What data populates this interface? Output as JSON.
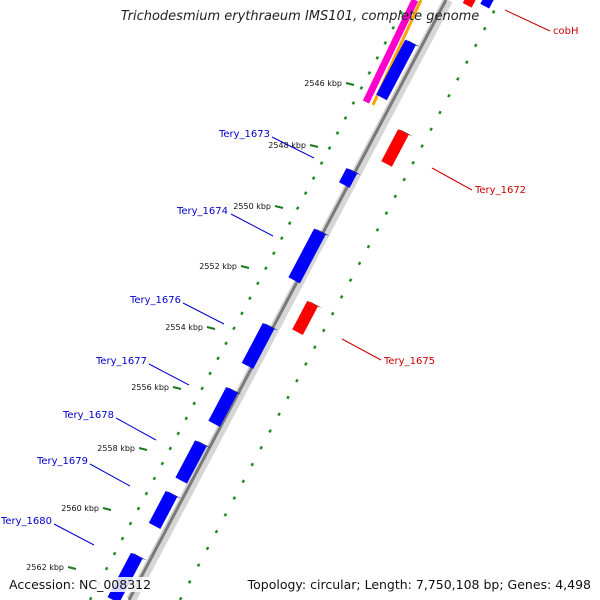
{
  "title": "Trichodesmium erythraeum IMS101, complete genome",
  "footer": {
    "accession": "Accession: NC_008312",
    "summary": "Topology: circular; Length: 7,750,108 bp; Genes: 4,498"
  },
  "colors": {
    "forward_gene": "#0000ff",
    "reverse_gene": "#ff0000",
    "label_forward": "#0000cc",
    "label_reverse": "#cc0000",
    "gc_dots": "#228b22",
    "backbone": "#808080",
    "magenta_track": "#ff00cc",
    "orange_track": "#ffa500"
  },
  "ticks": [
    "2546 kbp",
    "2548 kbp",
    "2550 kbp",
    "2552 kbp",
    "2554 kbp",
    "2556 kbp",
    "2558 kbp",
    "2560 kbp",
    "2562 kbp"
  ],
  "gene_labels": [
    {
      "id": "cobH",
      "strand": "reverse"
    },
    {
      "id": "Tery_1672",
      "strand": "reverse"
    },
    {
      "id": "Tery_1673",
      "strand": "forward"
    },
    {
      "id": "Tery_1674",
      "strand": "forward"
    },
    {
      "id": "Tery_1675",
      "strand": "reverse"
    },
    {
      "id": "Tery_1676",
      "strand": "forward"
    },
    {
      "id": "Tery_1677",
      "strand": "forward"
    },
    {
      "id": "Tery_1678",
      "strand": "forward"
    },
    {
      "id": "Tery_1679",
      "strand": "forward"
    },
    {
      "id": "Tery_1680",
      "strand": "forward"
    }
  ]
}
